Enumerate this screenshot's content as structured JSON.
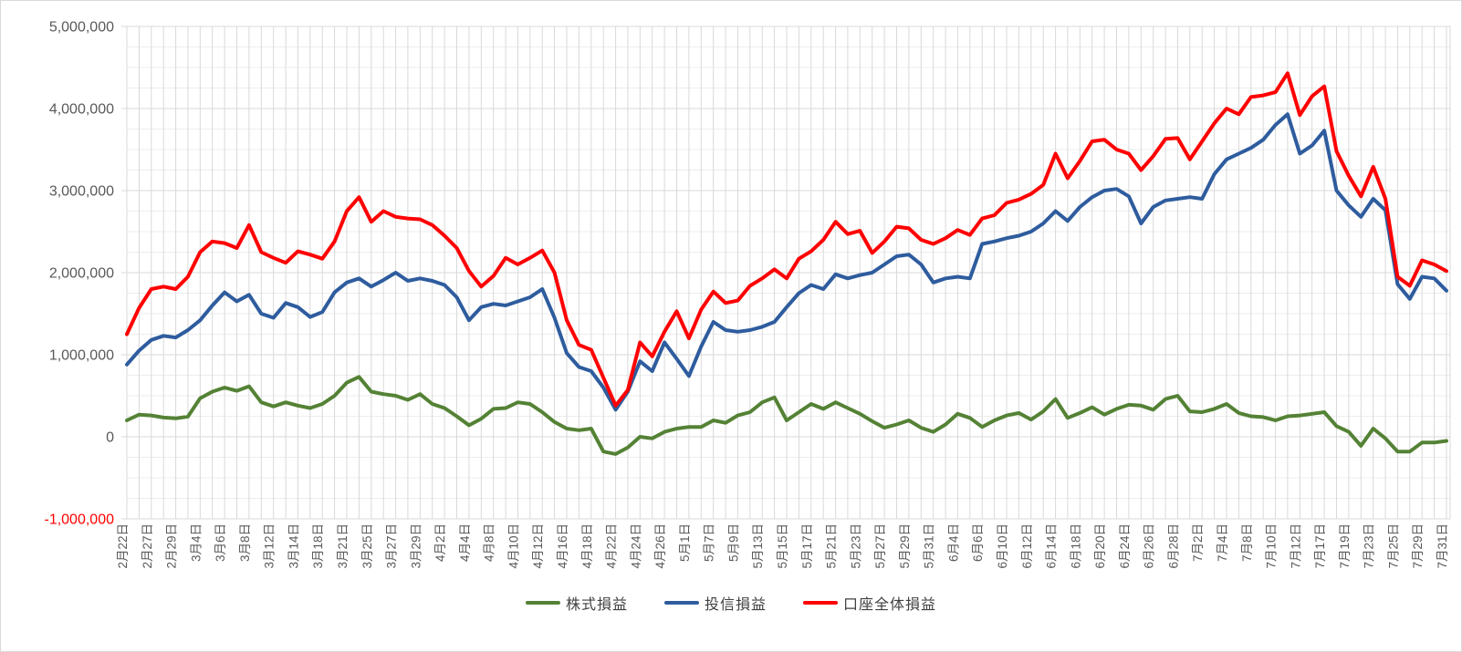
{
  "chart_data": {
    "type": "line",
    "title": "",
    "xlabel": "",
    "ylabel": "",
    "ylim": [
      -1000000,
      5000000
    ],
    "y_major_step": 1000000,
    "y_minor_step": 250000,
    "grid": true,
    "legend_position": "bottom-center",
    "axis_text_color": "#595959",
    "negative_tick_color": "#ff0000",
    "gridline_color": "#d9d9d9",
    "minor_gridline_color": "#ededed",
    "y_ticks": [
      "5,000,000",
      "4,000,000",
      "3,000,000",
      "2,000,000",
      "1,000,000",
      "0",
      "-1,000,000"
    ],
    "points_per_series": 109,
    "x_label_interval_points": 2,
    "x_labels": [
      "2月22日",
      "2月27日",
      "2月29日",
      "3月4日",
      "3月6日",
      "3月8日",
      "3月12日",
      "3月14日",
      "3月18日",
      "3月21日",
      "3月25日",
      "3月27日",
      "3月29日",
      "4月2日",
      "4月4日",
      "4月8日",
      "4月10日",
      "4月12日",
      "4月16日",
      "4月18日",
      "4月22日",
      "4月24日",
      "4月26日",
      "5月1日",
      "5月7日",
      "5月9日",
      "5月13日",
      "5月15日",
      "5月17日",
      "5月21日",
      "5月23日",
      "5月27日",
      "5月29日",
      "5月31日",
      "6月4日",
      "6月6日",
      "6月10日",
      "6月12日",
      "6月14日",
      "6月18日",
      "6月20日",
      "6月24日",
      "6月26日",
      "6月28日",
      "7月2日",
      "7月4日",
      "7月8日",
      "7月10日",
      "7月12日",
      "7月17日",
      "7月19日",
      "7月23日",
      "7月25日",
      "7月29日",
      "7月31日"
    ],
    "series": [
      {
        "name": "株式損益",
        "color": "#548235",
        "values": [
          200000,
          270000,
          260000,
          235000,
          225000,
          245000,
          470000,
          550000,
          600000,
          560000,
          615000,
          420000,
          370000,
          420000,
          380000,
          350000,
          400000,
          500000,
          660000,
          730000,
          550000,
          520000,
          500000,
          450000,
          520000,
          400000,
          350000,
          250000,
          140000,
          220000,
          340000,
          350000,
          420000,
          400000,
          300000,
          180000,
          100000,
          80000,
          100000,
          -180000,
          -210000,
          -130000,
          0,
          -20000,
          60000,
          100000,
          120000,
          120000,
          200000,
          170000,
          260000,
          300000,
          420000,
          480000,
          200000,
          300000,
          400000,
          340000,
          420000,
          350000,
          280000,
          190000,
          110000,
          150000,
          200000,
          110000,
          60000,
          150000,
          280000,
          230000,
          120000,
          200000,
          260000,
          290000,
          210000,
          310000,
          460000,
          230000,
          290000,
          360000,
          270000,
          340000,
          390000,
          380000,
          330000,
          460000,
          500000,
          310000,
          300000,
          340000,
          400000,
          290000,
          250000,
          240000,
          200000,
          250000,
          260000,
          280000,
          300000,
          130000,
          60000,
          -110000,
          100000,
          -20000,
          -180000,
          -180000,
          -70000,
          -70000,
          -50000
        ]
      },
      {
        "name": "投信損益",
        "color": "#2e5c9e",
        "values": [
          880000,
          1050000,
          1180000,
          1230000,
          1210000,
          1300000,
          1420000,
          1600000,
          1760000,
          1650000,
          1730000,
          1500000,
          1450000,
          1630000,
          1580000,
          1460000,
          1520000,
          1760000,
          1880000,
          1930000,
          1830000,
          1910000,
          2000000,
          1900000,
          1930000,
          1900000,
          1850000,
          1700000,
          1420000,
          1580000,
          1620000,
          1600000,
          1650000,
          1700000,
          1800000,
          1450000,
          1020000,
          850000,
          800000,
          600000,
          330000,
          550000,
          920000,
          800000,
          1150000,
          950000,
          740000,
          1100000,
          1400000,
          1300000,
          1280000,
          1300000,
          1340000,
          1400000,
          1580000,
          1750000,
          1850000,
          1800000,
          1980000,
          1930000,
          1970000,
          2000000,
          2100000,
          2200000,
          2220000,
          2100000,
          1880000,
          1930000,
          1950000,
          1930000,
          2350000,
          2380000,
          2420000,
          2450000,
          2500000,
          2600000,
          2750000,
          2630000,
          2800000,
          2920000,
          3000000,
          3020000,
          2930000,
          2600000,
          2800000,
          2880000,
          2900000,
          2920000,
          2900000,
          3200000,
          3380000,
          3450000,
          3520000,
          3620000,
          3800000,
          3930000,
          3450000,
          3550000,
          3730000,
          3000000,
          2820000,
          2680000,
          2900000,
          2760000,
          1860000,
          1680000,
          1950000,
          1930000,
          1780000
        ]
      },
      {
        "name": "口座全体損益",
        "color": "#ff0000",
        "values": [
          1250000,
          1570000,
          1800000,
          1830000,
          1800000,
          1950000,
          2250000,
          2380000,
          2360000,
          2300000,
          2580000,
          2250000,
          2180000,
          2120000,
          2260000,
          2220000,
          2170000,
          2380000,
          2750000,
          2920000,
          2620000,
          2750000,
          2680000,
          2660000,
          2650000,
          2580000,
          2450000,
          2300000,
          2020000,
          1830000,
          1960000,
          2180000,
          2100000,
          2180000,
          2270000,
          2000000,
          1420000,
          1120000,
          1060000,
          720000,
          380000,
          570000,
          1150000,
          980000,
          1280000,
          1530000,
          1200000,
          1550000,
          1770000,
          1630000,
          1660000,
          1840000,
          1930000,
          2040000,
          1930000,
          2170000,
          2260000,
          2400000,
          2620000,
          2470000,
          2510000,
          2240000,
          2380000,
          2560000,
          2540000,
          2400000,
          2350000,
          2420000,
          2520000,
          2460000,
          2660000,
          2700000,
          2850000,
          2890000,
          2960000,
          3070000,
          3450000,
          3150000,
          3360000,
          3600000,
          3620000,
          3500000,
          3450000,
          3250000,
          3420000,
          3630000,
          3640000,
          3380000,
          3600000,
          3820000,
          4000000,
          3930000,
          4140000,
          4160000,
          4200000,
          4430000,
          3920000,
          4150000,
          4270000,
          3480000,
          3180000,
          2930000,
          3290000,
          2900000,
          1950000,
          1840000,
          2150000,
          2100000,
          2020000
        ]
      }
    ]
  }
}
